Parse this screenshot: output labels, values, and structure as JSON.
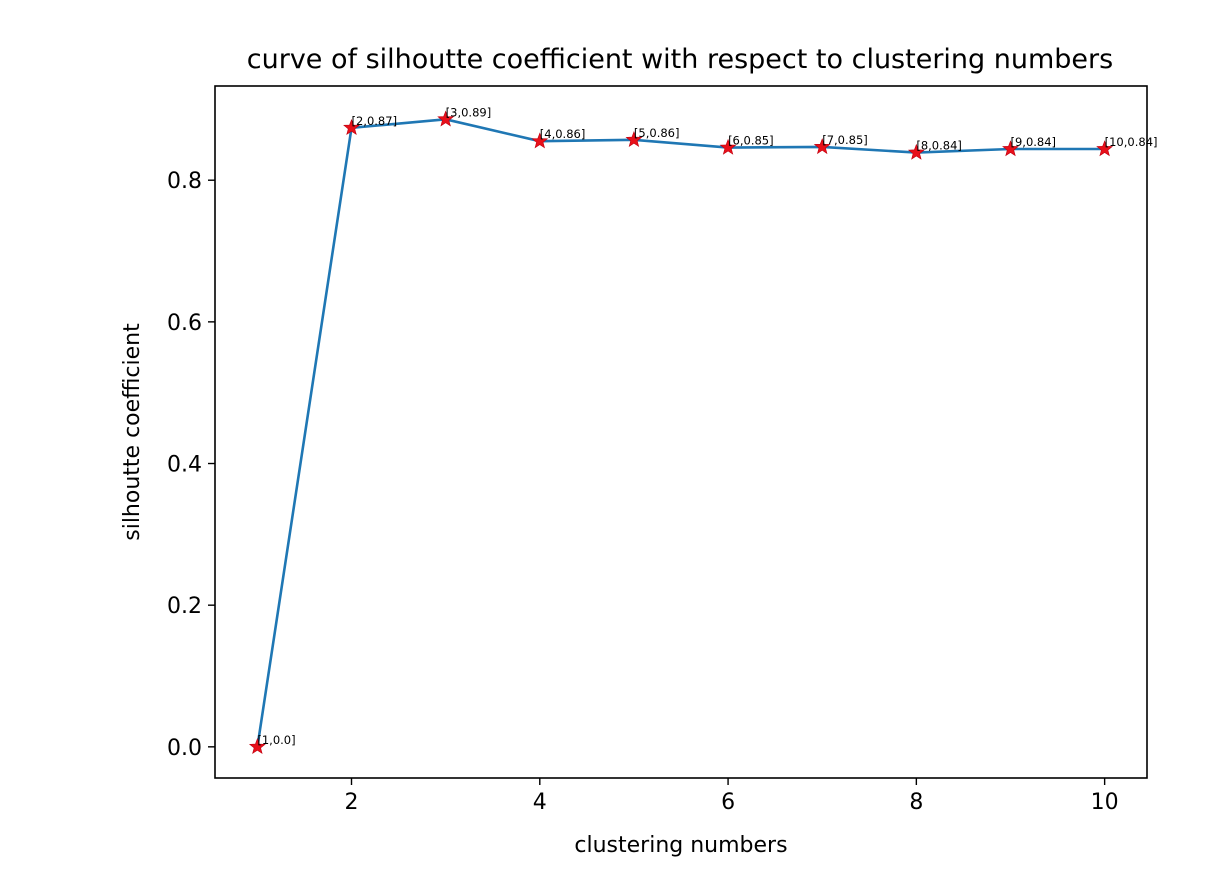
{
  "chart_data": {
    "type": "line",
    "title": "curve of silhoutte coefficient with respect to clustering numbers",
    "xlabel": "clustering numbers",
    "ylabel": "silhoutte coefficient",
    "xlim": [
      0.55,
      10.45
    ],
    "ylim": [
      -0.044,
      0.933
    ],
    "xticks": [
      2,
      4,
      6,
      8,
      10
    ],
    "xtick_labels": [
      "2",
      "4",
      "6",
      "8",
      "10"
    ],
    "yticks": [
      0.0,
      0.2,
      0.4,
      0.6,
      0.8
    ],
    "ytick_labels": [
      "0.0",
      "0.2",
      "0.4",
      "0.6",
      "0.8"
    ],
    "grid": false,
    "series": [
      {
        "x": [
          1,
          2,
          3,
          4,
          5,
          6,
          7,
          8,
          9,
          10
        ],
        "y": [
          0.0,
          0.874,
          0.886,
          0.855,
          0.857,
          0.846,
          0.847,
          0.839,
          0.844,
          0.844
        ],
        "line_color": "#1f77b4",
        "marker": "star",
        "marker_color": "#e8101a"
      }
    ],
    "annotations": [
      "[1,0.0]",
      "[2,0.87]",
      "[3,0.89]",
      "[4,0.86]",
      "[5,0.86]",
      "[6,0.85]",
      "[7,0.85]",
      "[8,0.84]",
      "[9,0.84]",
      "[10,0.84]"
    ]
  }
}
